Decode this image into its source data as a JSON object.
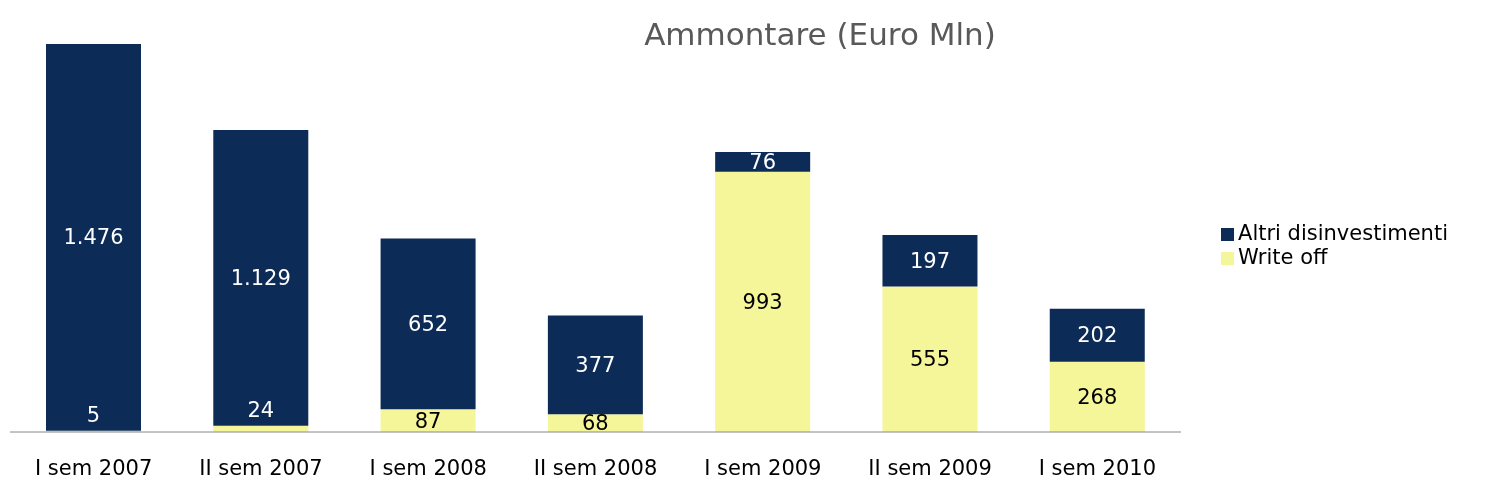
{
  "chart_data": {
    "type": "bar",
    "title": "Ammontare (Euro Mln)",
    "categories": [
      "I sem 2007",
      "II sem 2007",
      "I sem 2008",
      "II sem 2008",
      "I sem 2009",
      "II sem 2009",
      "I sem 2010"
    ],
    "stacked": true,
    "legend": "right",
    "series": [
      {
        "name": "Write off",
        "color": "#f5f59a",
        "values": [
          5,
          24,
          87,
          68,
          993,
          555,
          268
        ],
        "value_labels": [
          "5",
          "24",
          "87",
          "68",
          "993",
          "555",
          "268"
        ]
      },
      {
        "name": "Altri disinvestimenti",
        "color": "#0c2b57",
        "values": [
          1476,
          1129,
          652,
          377,
          76,
          197,
          202
        ],
        "value_labels": [
          "1.476",
          "1.129",
          "652",
          "377",
          "76",
          "197",
          "202"
        ]
      }
    ]
  }
}
